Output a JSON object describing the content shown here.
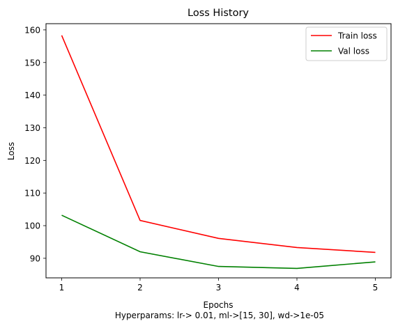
{
  "chart_data": {
    "type": "line",
    "title": "Loss History",
    "xlabel": "Epochs",
    "ylabel": "Loss",
    "caption": " Hyperparams: lr-> 0.01, ml->[15, 30], wd->1e-05",
    "x": [
      1,
      2,
      3,
      4,
      5
    ],
    "xticks": [
      "1",
      "2",
      "3",
      "4",
      "5"
    ],
    "yticks": [
      "90",
      "100",
      "110",
      "120",
      "130",
      "140",
      "150",
      "160"
    ],
    "xlim": [
      0.8,
      5.2
    ],
    "ylim": [
      84.0,
      161.9
    ],
    "grid": false,
    "legend_position": "top-right",
    "series": [
      {
        "name": "Train loss",
        "color": "#ff0000",
        "values": [
          158.3,
          101.6,
          96.1,
          93.3,
          91.8
        ]
      },
      {
        "name": "Val loss",
        "color": "#008000",
        "values": [
          103.2,
          92.0,
          87.5,
          86.9,
          88.9
        ]
      }
    ]
  }
}
